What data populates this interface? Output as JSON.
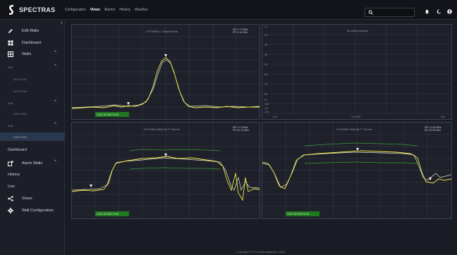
{
  "app": {
    "name": "SPECTRAS"
  },
  "topnav": [
    "Configuration",
    "Views",
    "Alarms",
    "History",
    "Weather"
  ],
  "topnav_active": 1,
  "sidebar": {
    "edit_walls": "Edit Walls",
    "dashboard": "Dashboard",
    "walls": "Walls",
    "group1": "K10",
    "group1_items": [
      "K10 D-001",
      "K10 D-003"
    ],
    "group2": "K20",
    "group2_items": [
      "K20 D-004"
    ],
    "group3": "K26",
    "group3_items": [
      "K26 D-002"
    ],
    "dashboard2": "Dashboard",
    "alarm_walls": "Alarm Walls",
    "history": "History",
    "live": "Live",
    "share": "Share",
    "wall_config": "Wall Configuration"
  },
  "panels": {
    "p1": {
      "title": "LPT-003B1 K-1 Biqanta H-ffa",
      "stats": [
        "SR: 1.73 MHz",
        "RT: 4.14 MHz"
      ],
      "badge": "13:57:28 GMT+0:00"
    },
    "p2": {
      "title": "No active snapshot",
      "yticks": [
        "10",
        "20",
        "30",
        "40",
        "50",
        "60",
        "70",
        "80",
        "90",
        "100",
        "110",
        "120"
      ],
      "xticks": [
        "1.00",
        "1.5 GHZ",
        "1.80"
      ]
    },
    "p3": {
      "title": "LPT-003B1 D69A 36.77 136 kHz",
      "stats": [
        "SR: 17.5 MHz",
        "RT: 40.70 MHz"
      ],
      "badge": "13:57:28 GMT+0:00"
    },
    "p4": {
      "title": "LPT-003B1 D69A 36.77 736 kHz",
      "stats": [
        "SR: 11.52 MHz",
        "RT: 42.26 MHz"
      ],
      "badge": "13:57:28 GMT+0:00"
    }
  },
  "footer": "Copyright © LP Technologies Inc. 2021",
  "colors": {
    "trace": "#f2e64a",
    "trace2": "#e8e8d0",
    "mask": "#3a9a3a",
    "badge": "#1f7a1f",
    "accent": "#29384f"
  }
}
